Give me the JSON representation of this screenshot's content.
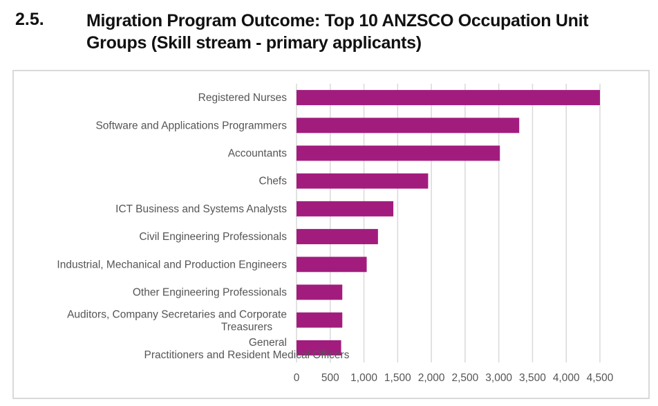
{
  "heading": {
    "number": "2.5.",
    "title": "Migration Program Outcome: Top 10 ANZSCO Occupation Unit Groups (Skill stream - primary applicants)"
  },
  "chart_data": {
    "type": "bar",
    "orientation": "horizontal",
    "categories": [
      "Registered Nurses",
      "Software and Applications Programmers",
      "Accountants",
      "Chefs",
      "ICT Business and Systems Analysts",
      "Civil Engineering Professionals",
      "Industrial, Mechanical and Production Engineers",
      "Other Engineering Professionals",
      "Auditors, Company Secretaries and Corporate Treasurers",
      "General Practitioners and Resident Medical Officers"
    ],
    "values": [
      4500,
      3303,
      3016,
      1952,
      1436,
      1208,
      1041,
      679,
      679,
      662
    ],
    "xlim": [
      0,
      4500
    ],
    "xticks": [
      "0",
      "500",
      "1,000",
      "1,500",
      "2,000",
      "2,500",
      "3,000",
      "3,500",
      "4,000",
      "4,500"
    ],
    "grid": true,
    "bar_color": "#a21c7e",
    "title": "",
    "xlabel": "",
    "ylabel": ""
  }
}
